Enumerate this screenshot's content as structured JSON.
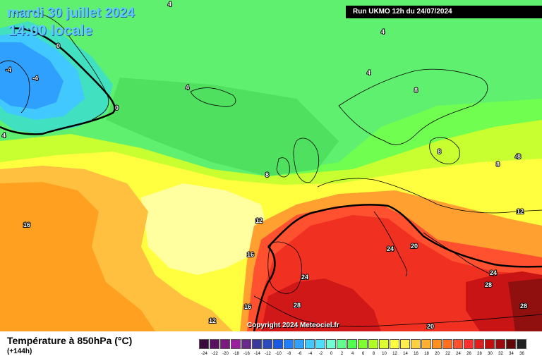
{
  "header": {
    "date": "mardi 30 juillet 2024",
    "time": "14:00 locale",
    "run": "Run UKMO 12h du 24/07/2024"
  },
  "copyright": "Copyright 2024 Meteociel.fr",
  "footer": {
    "variable": "Température à 850hPa (°C)",
    "lead": "(+144h)"
  },
  "legend": {
    "labels": [
      "-24",
      "-22",
      "-20",
      "-18",
      "-16",
      "-14",
      "-12",
      "-10",
      "-8",
      "-6",
      "-4",
      "-2",
      "0",
      "2",
      "4",
      "6",
      "8",
      "10",
      "12",
      "14",
      "16",
      "18",
      "20",
      "22",
      "24",
      "26",
      "28",
      "30",
      "32",
      "34",
      "36"
    ],
    "colors": [
      "#3a0a3a",
      "#5a1060",
      "#7a1a80",
      "#9a20a0",
      "#6a2a8a",
      "#3a3a9a",
      "#2a4ac0",
      "#1a5ae0",
      "#2080ff",
      "#30a0ff",
      "#40c8ff",
      "#50e0ff",
      "#70ffd0",
      "#60ff90",
      "#50ff50",
      "#80ff30",
      "#b0ff20",
      "#e0ff30",
      "#ffff40",
      "#ffee50",
      "#ffd040",
      "#ffb030",
      "#ff9020",
      "#ff7020",
      "#ff5030",
      "#ff3030",
      "#e02020",
      "#c01010",
      "#a00a0a",
      "#600808",
      "#202020"
    ]
  },
  "map": {
    "contour_labels": [
      {
        "text": "4"
      },
      {
        "text": "4"
      },
      {
        "text": "4"
      },
      {
        "text": "4"
      },
      {
        "text": "4"
      },
      {
        "text": "4"
      },
      {
        "text": "0"
      },
      {
        "text": "0"
      },
      {
        "text": "-4"
      },
      {
        "text": "-4"
      },
      {
        "text": "8"
      },
      {
        "text": "8"
      },
      {
        "text": "8"
      },
      {
        "text": "8"
      },
      {
        "text": "8"
      },
      {
        "text": "12"
      },
      {
        "text": "12"
      },
      {
        "text": "12"
      },
      {
        "text": "16"
      },
      {
        "text": "16"
      },
      {
        "text": "16"
      },
      {
        "text": "20"
      },
      {
        "text": "20"
      },
      {
        "text": "24"
      },
      {
        "text": "24"
      },
      {
        "text": "24"
      },
      {
        "text": "28"
      },
      {
        "text": "28"
      },
      {
        "text": "28"
      }
    ]
  }
}
